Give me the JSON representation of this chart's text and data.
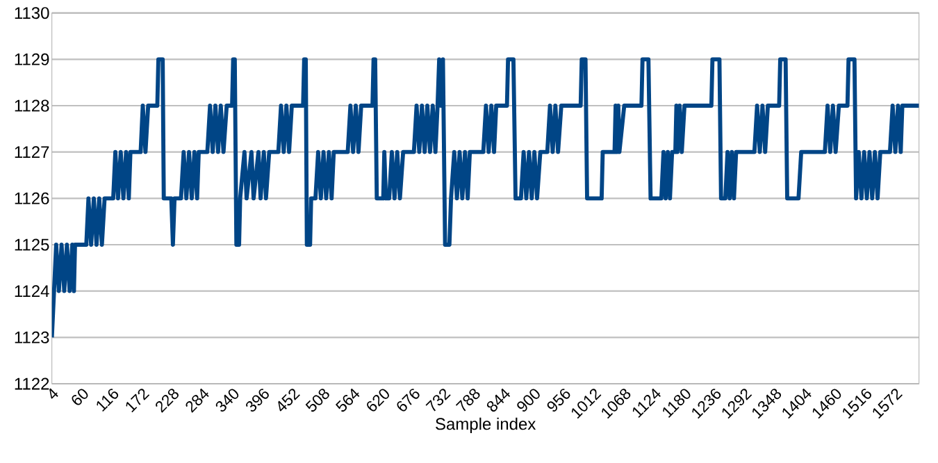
{
  "chart_data": {
    "type": "line",
    "xlabel": "Sample index",
    "color": "#004586",
    "grid": "y",
    "xlim": [
      4,
      1616
    ],
    "ylim": [
      1122,
      1130
    ],
    "xticks": [
      4,
      60,
      116,
      172,
      228,
      284,
      340,
      396,
      452,
      508,
      564,
      620,
      676,
      732,
      788,
      844,
      900,
      956,
      1012,
      1068,
      1124,
      1180,
      1236,
      1292,
      1348,
      1404,
      1460,
      1516,
      1572
    ],
    "yticks": [
      1122,
      1123,
      1124,
      1125,
      1126,
      1127,
      1128,
      1129,
      1130
    ],
    "x": [
      4,
      8,
      12,
      17,
      22,
      27,
      32,
      37,
      42,
      45,
      47,
      68,
      72,
      77,
      82,
      87,
      92,
      97,
      102,
      118,
      122,
      127,
      132,
      137,
      142,
      147,
      150,
      169,
      173,
      178,
      183,
      200,
      202,
      210,
      212,
      226,
      229,
      232,
      244,
      249,
      254,
      259,
      264,
      269,
      274,
      277,
      293,
      298,
      303,
      308,
      313,
      318,
      323,
      329,
      339,
      341,
      344,
      347,
      352,
      354,
      362,
      366,
      375,
      379,
      388,
      392,
      398,
      402,
      408,
      412,
      425,
      430,
      435,
      440,
      445,
      450,
      456,
      471,
      473,
      476,
      478,
      484,
      486,
      494,
      499,
      504,
      509,
      514,
      519,
      524,
      528,
      554,
      559,
      564,
      569,
      574,
      579,
      585,
      600,
      602,
      605,
      608,
      620,
      622,
      625,
      631,
      636,
      641,
      646,
      651,
      657,
      677,
      682,
      687,
      692,
      697,
      702,
      707,
      712,
      717,
      721,
      724,
      727,
      731,
      735,
      743,
      746,
      752,
      757,
      762,
      767,
      772,
      777,
      781,
      806,
      811,
      816,
      821,
      826,
      830,
      850,
      852,
      862,
      866,
      876,
      881,
      886,
      891,
      896,
      901,
      906,
      912,
      925,
      930,
      935,
      940,
      945,
      951,
      987,
      989,
      996,
      999,
      1026,
      1028,
      1050,
      1052,
      1054,
      1057,
      1059,
      1068,
      1100,
      1102,
      1113,
      1117,
      1137,
      1141,
      1145,
      1149,
      1153,
      1157,
      1163,
      1165,
      1167,
      1171,
      1175,
      1180,
      1230,
      1232,
      1245,
      1248,
      1256,
      1260,
      1264,
      1268,
      1272,
      1276,
      1310,
      1315,
      1320,
      1325,
      1330,
      1335,
      1356,
      1358,
      1368,
      1371,
      1392,
      1397,
      1441,
      1446,
      1451,
      1456,
      1461,
      1467,
      1483,
      1485,
      1496,
      1499,
      1504,
      1509,
      1514,
      1519,
      1524,
      1529,
      1534,
      1539,
      1544,
      1562,
      1567,
      1572,
      1577,
      1582,
      1585,
      1616
    ],
    "values": [
      1123,
      1124,
      1125,
      1124,
      1125,
      1124,
      1125,
      1124,
      1125,
      1124,
      1125,
      1125,
      1126,
      1125,
      1126,
      1125,
      1126,
      1125,
      1126,
      1126,
      1127,
      1126,
      1127,
      1126,
      1127,
      1126,
      1127,
      1127,
      1128,
      1127,
      1128,
      1128,
      1129,
      1129,
      1126,
      1126,
      1125,
      1126,
      1126,
      1127,
      1126,
      1127,
      1126,
      1127,
      1126,
      1127,
      1127,
      1128,
      1127,
      1128,
      1127,
      1128,
      1127,
      1128,
      1128,
      1129,
      1129,
      1125,
      1125,
      1126,
      1127,
      1126,
      1127,
      1126,
      1127,
      1126,
      1127,
      1126,
      1127,
      1127,
      1127,
      1128,
      1127,
      1128,
      1127,
      1128,
      1128,
      1128,
      1129,
      1129,
      1125,
      1125,
      1126,
      1126,
      1127,
      1126,
      1127,
      1126,
      1127,
      1126,
      1127,
      1127,
      1128,
      1127,
      1128,
      1127,
      1128,
      1128,
      1128,
      1129,
      1129,
      1126,
      1126,
      1127,
      1126,
      1126,
      1127,
      1126,
      1127,
      1126,
      1127,
      1127,
      1128,
      1127,
      1128,
      1127,
      1128,
      1127,
      1128,
      1127,
      1128,
      1129,
      1128,
      1129,
      1125,
      1125,
      1126,
      1127,
      1126,
      1127,
      1126,
      1127,
      1126,
      1127,
      1127,
      1128,
      1127,
      1128,
      1127,
      1128,
      1128,
      1129,
      1129,
      1126,
      1126,
      1127,
      1126,
      1127,
      1126,
      1127,
      1126,
      1127,
      1127,
      1128,
      1127,
      1128,
      1127,
      1128,
      1128,
      1129,
      1129,
      1126,
      1126,
      1127,
      1127,
      1128,
      1127,
      1128,
      1127,
      1128,
      1128,
      1129,
      1129,
      1126,
      1126,
      1127,
      1126,
      1127,
      1126,
      1127,
      1127,
      1128,
      1127,
      1128,
      1127,
      1128,
      1128,
      1129,
      1129,
      1126,
      1126,
      1127,
      1126,
      1127,
      1126,
      1127,
      1127,
      1128,
      1127,
      1128,
      1127,
      1128,
      1128,
      1129,
      1129,
      1126,
      1126,
      1127,
      1127,
      1128,
      1127,
      1128,
      1127,
      1128,
      1128,
      1129,
      1129,
      1126,
      1127,
      1126,
      1127,
      1126,
      1127,
      1126,
      1127,
      1126,
      1127,
      1127,
      1128,
      1127,
      1128,
      1127,
      1128,
      1128
    ]
  }
}
